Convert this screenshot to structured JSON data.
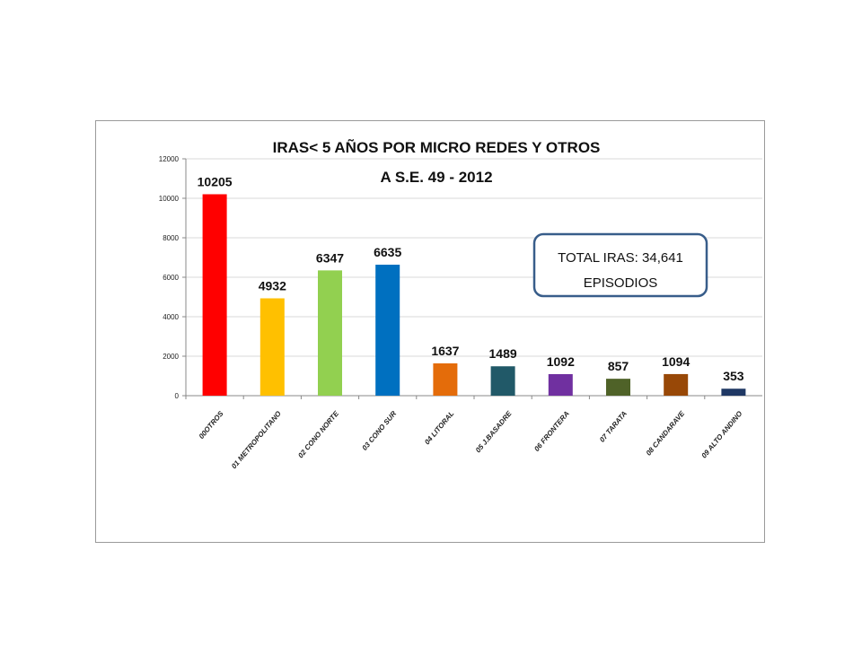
{
  "chart_data": {
    "type": "bar",
    "title": [
      "IRAS< 5 AÑOS POR MICRO REDES Y OTROS",
      "A  S.E.  49 - 2012"
    ],
    "categories": [
      "00OTROS",
      "01 METROPOLITANO",
      "02 CONO NORTE",
      "03 CONO SUR",
      "04 LITORAL",
      "05 J.BASADRE",
      "06 FRONTERA",
      "07 TARATA",
      "08 CANDARAVE",
      "09 ALTO ANDINO"
    ],
    "values": [
      10205,
      4932,
      6347,
      6635,
      1637,
      1489,
      1092,
      857,
      1094,
      353
    ],
    "colors": [
      "#ff0000",
      "#ffc000",
      "#92d050",
      "#0070c0",
      "#e46c0a",
      "#215968",
      "#7030a0",
      "#4f6228",
      "#984807",
      "#1f3864"
    ],
    "ylim": [
      0,
      12000
    ],
    "yticks": [
      0,
      2000,
      4000,
      6000,
      8000,
      10000,
      12000
    ],
    "grid": true,
    "xlabel": "",
    "ylabel": "",
    "annotation": {
      "line1": "TOTAL  IRAS:  34,641",
      "line2": "EPISODIOS",
      "border_color": "#385d8a"
    }
  }
}
